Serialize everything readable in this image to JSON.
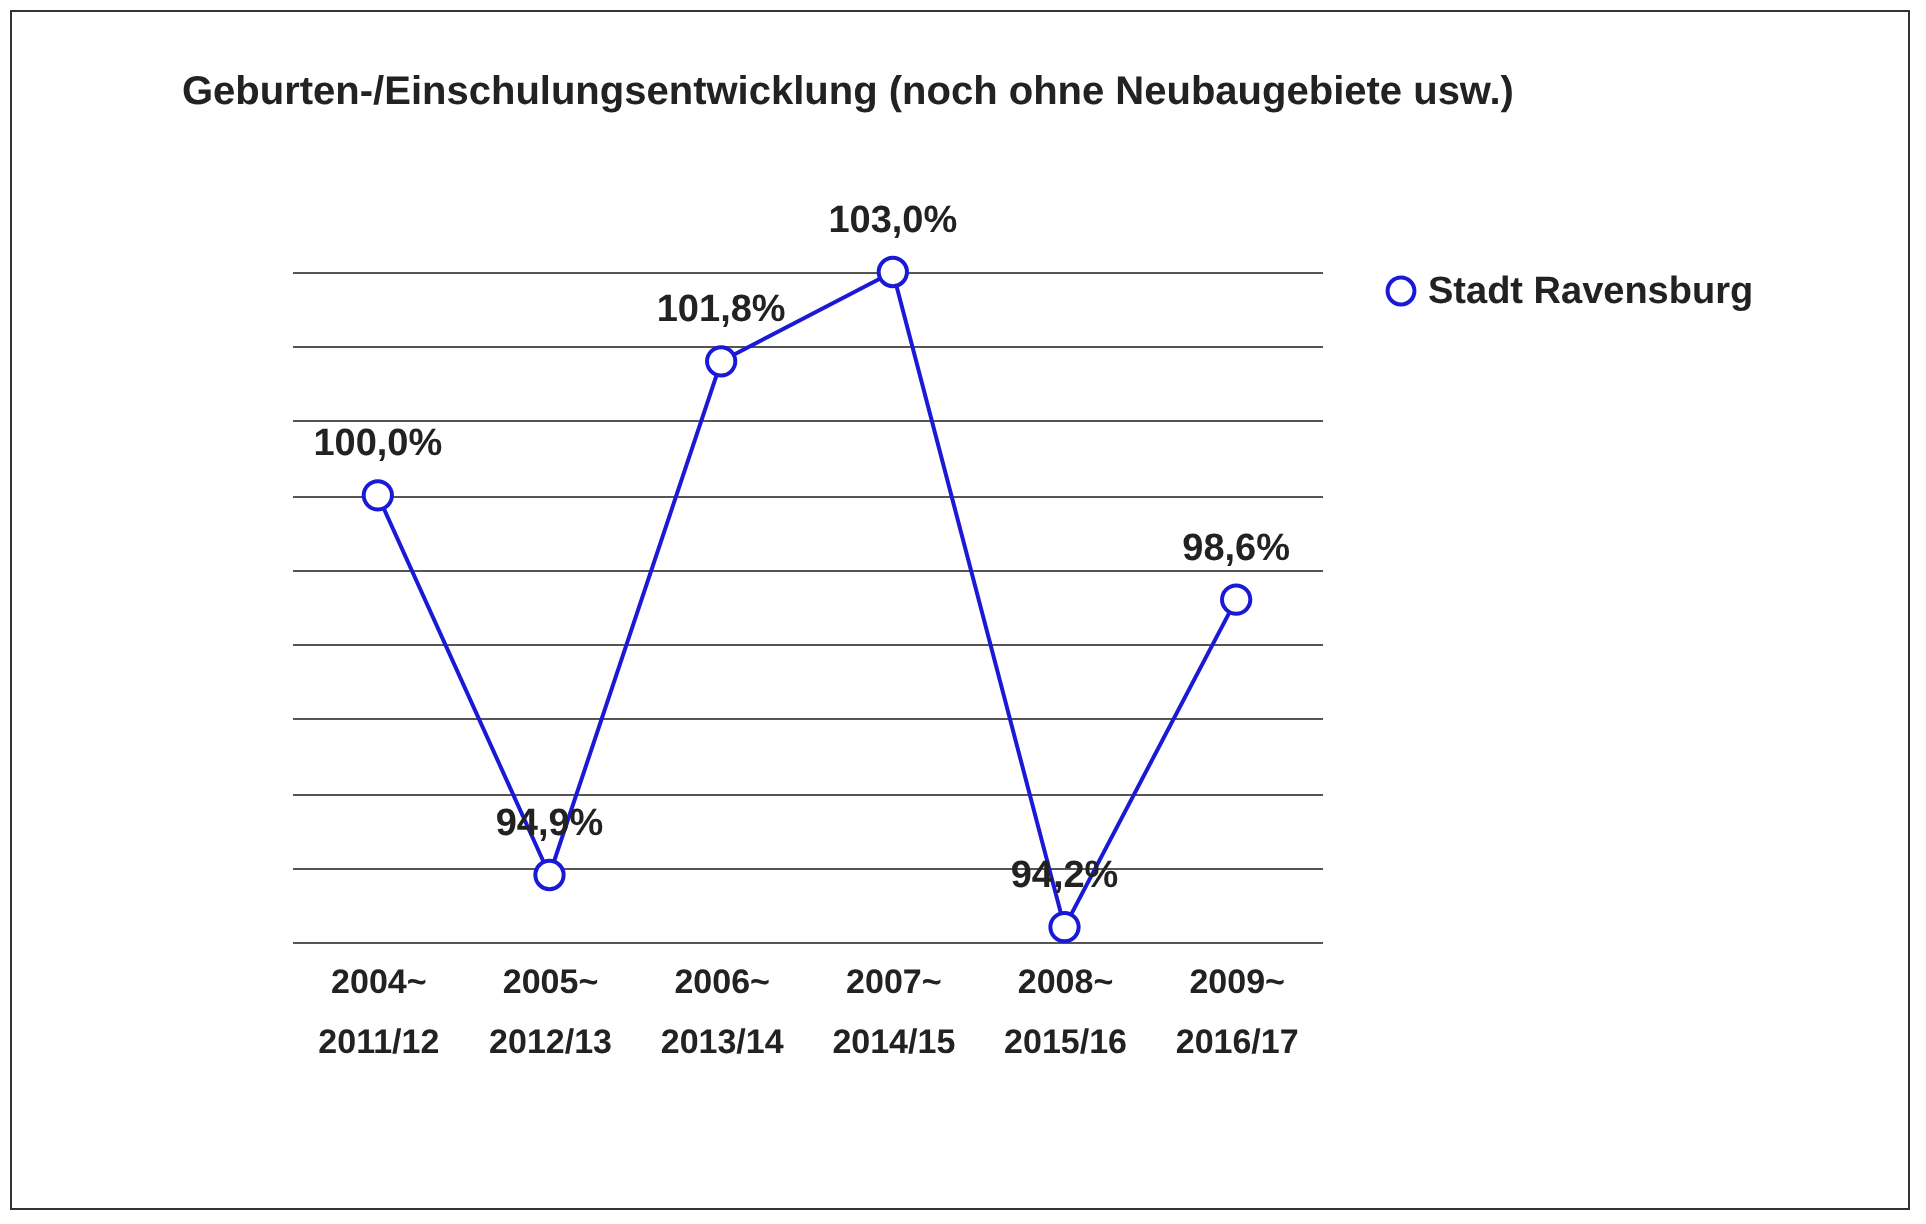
{
  "chart_data": {
    "type": "line",
    "title": "Geburten-/Einschulungsentwicklung (noch ohne Neubaugebiete usw.)",
    "categories": [
      "2004~\n2011/12",
      "2005~\n2012/13",
      "2006~\n2013/14",
      "2007~\n2014/15",
      "2008~\n2015/16",
      "2009~\n2016/17"
    ],
    "series": [
      {
        "name": "Stadt Ravensburg",
        "color": "#1a1ad6",
        "values": [
          100.0,
          94.9,
          101.8,
          103.0,
          94.2,
          98.6
        ],
        "value_labels": [
          "100,0%",
          "94,9%",
          "101,8%",
          "103,0%",
          "94,2%",
          "98,6%"
        ]
      }
    ],
    "grid": "y",
    "legend": "right",
    "marker": "circle",
    "line_style": "solid",
    "tick_labels": "x"
  }
}
